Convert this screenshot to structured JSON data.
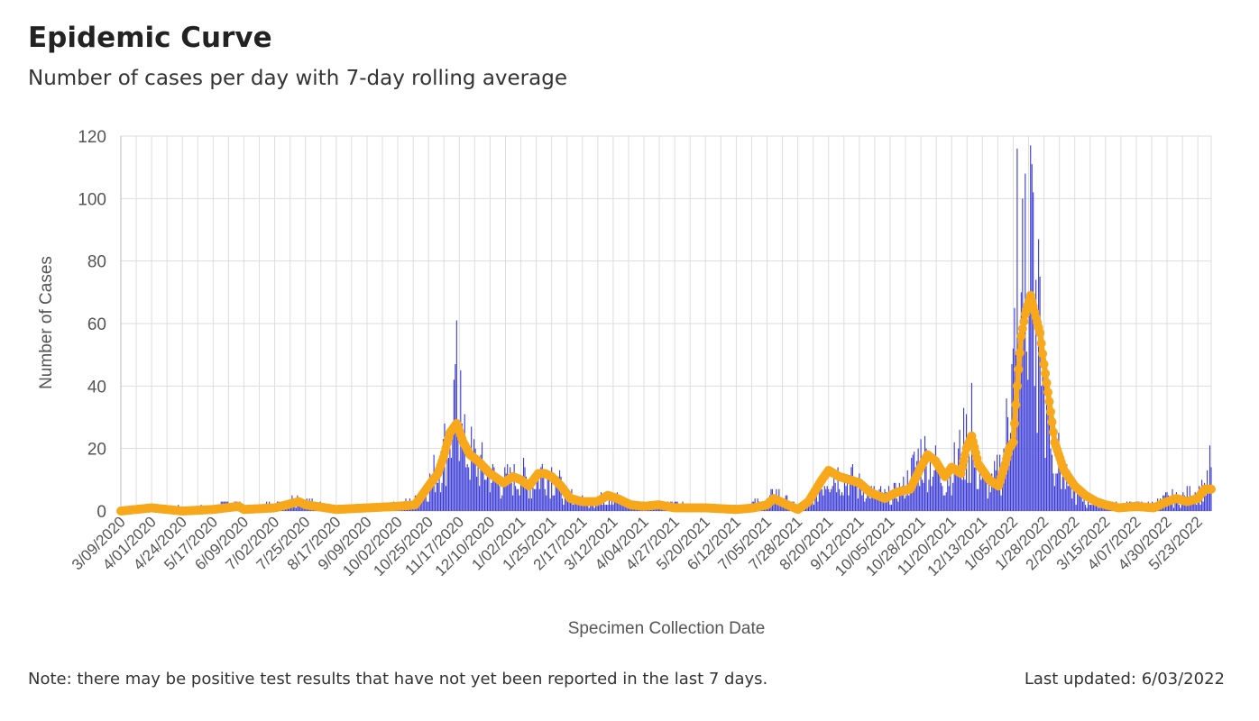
{
  "header": {
    "title": "Epidemic Curve",
    "subtitle": "Number of cases per day with 7-day rolling average"
  },
  "footer": {
    "note": "Note: there may be positive test results that have not yet been reported in the last 7 days.",
    "updated": "Last updated: 6/03/2022"
  },
  "colors": {
    "bars": "#3a3ad6",
    "rolling_average": "#f7a81b",
    "grid": "#dddddd",
    "axis_text": "#555555"
  },
  "chart_data": {
    "type": "bar",
    "xlabel": "Specimen Collection Date",
    "ylabel": "Number of Cases",
    "ylim": [
      0,
      120
    ],
    "y_ticks": [
      0,
      20,
      40,
      60,
      80,
      100,
      120
    ],
    "grid": true,
    "x_start": "2020-03-09",
    "x_end": "2022-06-02",
    "x_tick_labels": [
      "3/09/2020",
      "4/01/2020",
      "4/24/2020",
      "5/17/2020",
      "6/09/2020",
      "7/02/2020",
      "7/25/2020",
      "8/17/2020",
      "9/09/2020",
      "10/02/2020",
      "10/25/2020",
      "11/17/2020",
      "12/10/2020",
      "1/02/2021",
      "1/25/2021",
      "2/17/2021",
      "3/12/2021",
      "4/04/2021",
      "4/27/2021",
      "5/20/2021",
      "6/12/2021",
      "7/05/2021",
      "7/28/2021",
      "8/20/2021",
      "9/12/2021",
      "10/05/2021",
      "10/28/2021",
      "11/20/2021",
      "12/13/2021",
      "1/05/2022",
      "1/28/2022",
      "2/20/2022",
      "3/15/2022",
      "4/07/2022",
      "4/30/2022",
      "5/23/2022"
    ],
    "series": [
      {
        "kind": "bars",
        "description": "daily cases (estimated, anchor points in data units; intermediate days follow this envelope)",
        "anchors": [
          [
            "2020-03-09",
            0
          ],
          [
            "2020-04-01",
            1
          ],
          [
            "2020-05-17",
            1
          ],
          [
            "2020-06-02",
            3
          ],
          [
            "2020-06-09",
            1
          ],
          [
            "2020-07-02",
            2
          ],
          [
            "2020-07-20",
            4
          ],
          [
            "2020-07-25",
            3
          ],
          [
            "2020-08-17",
            1
          ],
          [
            "2020-09-09",
            1
          ],
          [
            "2020-10-02",
            2
          ],
          [
            "2020-10-15",
            3
          ],
          [
            "2020-10-25",
            8
          ],
          [
            "2020-11-05",
            18
          ],
          [
            "2020-11-10",
            25
          ],
          [
            "2020-11-14",
            30
          ],
          [
            "2020-11-20",
            20
          ],
          [
            "2020-12-01",
            15
          ],
          [
            "2020-12-10",
            11
          ],
          [
            "2020-12-20",
            9
          ],
          [
            "2021-01-02",
            11
          ],
          [
            "2021-01-10",
            8
          ],
          [
            "2021-01-20",
            14
          ],
          [
            "2021-01-25",
            12
          ],
          [
            "2021-02-05",
            5
          ],
          [
            "2021-02-17",
            3
          ],
          [
            "2021-02-28",
            3
          ],
          [
            "2021-03-12",
            5
          ],
          [
            "2021-03-25",
            2
          ],
          [
            "2021-04-04",
            2
          ],
          [
            "2021-04-27",
            2
          ],
          [
            "2021-05-20",
            1
          ],
          [
            "2021-06-12",
            1
          ],
          [
            "2021-07-05",
            3
          ],
          [
            "2021-07-12",
            6
          ],
          [
            "2021-07-20",
            3
          ],
          [
            "2021-07-28",
            1
          ],
          [
            "2021-08-10",
            5
          ],
          [
            "2021-08-20",
            12
          ],
          [
            "2021-09-01",
            11
          ],
          [
            "2021-09-12",
            8
          ],
          [
            "2021-09-25",
            5
          ],
          [
            "2021-10-05",
            5
          ],
          [
            "2021-10-15",
            7
          ],
          [
            "2021-10-28",
            18
          ],
          [
            "2021-11-05",
            15
          ],
          [
            "2021-11-15",
            10
          ],
          [
            "2021-11-22",
            14
          ],
          [
            "2021-12-01",
            22
          ],
          [
            "2021-12-10",
            12
          ],
          [
            "2021-12-20",
            8
          ],
          [
            "2021-12-28",
            15
          ],
          [
            "2022-01-05",
            40
          ],
          [
            "2022-01-10",
            65
          ],
          [
            "2022-01-15",
            75
          ],
          [
            "2022-01-22",
            68
          ],
          [
            "2022-01-28",
            45
          ],
          [
            "2022-02-05",
            20
          ],
          [
            "2022-02-12",
            10
          ],
          [
            "2022-02-20",
            6
          ],
          [
            "2022-03-01",
            3
          ],
          [
            "2022-03-15",
            2
          ],
          [
            "2022-04-07",
            2
          ],
          [
            "2022-04-20",
            2
          ],
          [
            "2022-04-30",
            4
          ],
          [
            "2022-05-10",
            4
          ],
          [
            "2022-05-23",
            6
          ],
          [
            "2022-06-02",
            9
          ]
        ],
        "labeled_peaks": [
          [
            "2020-11-15",
            61
          ],
          [
            "2020-11-18",
            45
          ],
          [
            "2021-12-05",
            41
          ],
          [
            "2022-01-08",
            116
          ],
          [
            "2022-01-14",
            108
          ],
          [
            "2022-01-18",
            117
          ],
          [
            "2022-01-22",
            74
          ],
          [
            "2022-06-01",
            21
          ]
        ]
      },
      {
        "kind": "line",
        "description": "7-day rolling average (estimated)",
        "points": [
          [
            "2020-03-09",
            0
          ],
          [
            "2020-04-01",
            1
          ],
          [
            "2020-04-24",
            0
          ],
          [
            "2020-05-17",
            0.5
          ],
          [
            "2020-06-05",
            1.5
          ],
          [
            "2020-06-09",
            0.5
          ],
          [
            "2020-07-02",
            1
          ],
          [
            "2020-07-20",
            3
          ],
          [
            "2020-07-25",
            2
          ],
          [
            "2020-08-17",
            0.5
          ],
          [
            "2020-09-09",
            1
          ],
          [
            "2020-10-02",
            1.5
          ],
          [
            "2020-10-15",
            2
          ],
          [
            "2020-10-20",
            5
          ],
          [
            "2020-10-25",
            8
          ],
          [
            "2020-11-01",
            12
          ],
          [
            "2020-11-05",
            17
          ],
          [
            "2020-11-10",
            25
          ],
          [
            "2020-11-15",
            28
          ],
          [
            "2020-11-20",
            22
          ],
          [
            "2020-11-25",
            18
          ],
          [
            "2020-12-01",
            16
          ],
          [
            "2020-12-10",
            12
          ],
          [
            "2020-12-20",
            9
          ],
          [
            "2020-12-27",
            11
          ],
          [
            "2021-01-02",
            10
          ],
          [
            "2021-01-08",
            8
          ],
          [
            "2021-01-15",
            12
          ],
          [
            "2021-01-20",
            12
          ],
          [
            "2021-01-25",
            11
          ],
          [
            "2021-02-01",
            8
          ],
          [
            "2021-02-08",
            4
          ],
          [
            "2021-02-17",
            3
          ],
          [
            "2021-02-28",
            3
          ],
          [
            "2021-03-08",
            5
          ],
          [
            "2021-03-15",
            4
          ],
          [
            "2021-03-25",
            2
          ],
          [
            "2021-04-04",
            1.5
          ],
          [
            "2021-04-15",
            2
          ],
          [
            "2021-04-27",
            1
          ],
          [
            "2021-05-20",
            1
          ],
          [
            "2021-06-12",
            0.5
          ],
          [
            "2021-06-25",
            1
          ],
          [
            "2021-07-05",
            2
          ],
          [
            "2021-07-10",
            4
          ],
          [
            "2021-07-15",
            3
          ],
          [
            "2021-07-28",
            0.5
          ],
          [
            "2021-08-05",
            3
          ],
          [
            "2021-08-15",
            10
          ],
          [
            "2021-08-20",
            13
          ],
          [
            "2021-08-28",
            11
          ],
          [
            "2021-09-05",
            10
          ],
          [
            "2021-09-12",
            9
          ],
          [
            "2021-09-20",
            6
          ],
          [
            "2021-10-01",
            4
          ],
          [
            "2021-10-10",
            6
          ],
          [
            "2021-10-20",
            7
          ],
          [
            "2021-10-28",
            14
          ],
          [
            "2021-11-02",
            18
          ],
          [
            "2021-11-08",
            16
          ],
          [
            "2021-11-15",
            11
          ],
          [
            "2021-11-20",
            14
          ],
          [
            "2021-11-27",
            12
          ],
          [
            "2021-12-01",
            20
          ],
          [
            "2021-12-05",
            24
          ],
          [
            "2021-12-10",
            15
          ],
          [
            "2021-12-18",
            10
          ],
          [
            "2021-12-25",
            8
          ],
          [
            "2021-12-30",
            15
          ],
          [
            "2022-01-02",
            20
          ],
          [
            "2022-01-05",
            22
          ],
          [
            "2022-01-08",
            40
          ],
          [
            "2022-01-11",
            56
          ],
          [
            "2022-01-14",
            63
          ],
          [
            "2022-01-18",
            69
          ],
          [
            "2022-01-22",
            62
          ],
          [
            "2022-01-25",
            57
          ],
          [
            "2022-01-28",
            47
          ],
          [
            "2022-02-01",
            35
          ],
          [
            "2022-02-05",
            22
          ],
          [
            "2022-02-12",
            13
          ],
          [
            "2022-02-20",
            8
          ],
          [
            "2022-02-28",
            5
          ],
          [
            "2022-03-08",
            3
          ],
          [
            "2022-03-15",
            2
          ],
          [
            "2022-03-25",
            1
          ],
          [
            "2022-04-07",
            1.5
          ],
          [
            "2022-04-20",
            1
          ],
          [
            "2022-04-30",
            3
          ],
          [
            "2022-05-07",
            4
          ],
          [
            "2022-05-15",
            3
          ],
          [
            "2022-05-23",
            4
          ],
          [
            "2022-05-28",
            7
          ],
          [
            "2022-06-02",
            7
          ]
        ]
      }
    ]
  }
}
